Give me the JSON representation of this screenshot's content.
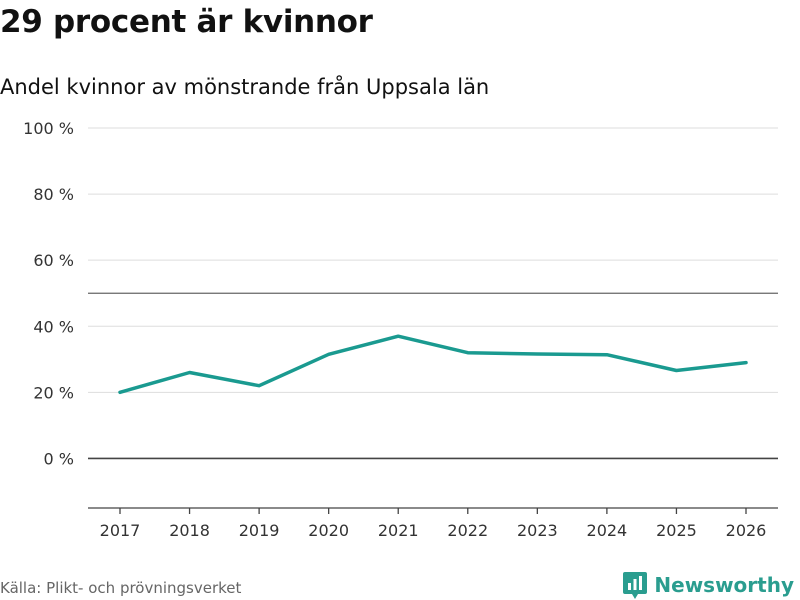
{
  "header": {
    "title": "29 procent är kvinnor",
    "subtitle": "Andel kvinnor av mönstrande från Uppsala län"
  },
  "footer": {
    "source": "Källa: Plikt- och prövningsverket",
    "brand": "Newsworthy"
  },
  "colors": {
    "line": "#1a9a90",
    "grid": "#dddddd",
    "zero_line": "#444444",
    "reference_line": "#666666",
    "brand": "#2a9d8f"
  },
  "chart_data": {
    "type": "line",
    "title": "29 procent är kvinnor",
    "subtitle": "Andel kvinnor av mönstrande från Uppsala län",
    "x": [
      "2017",
      "2018",
      "2019",
      "2020",
      "2021",
      "2022",
      "2023",
      "2024",
      "2025",
      "2026"
    ],
    "series": [
      {
        "name": "Andel kvinnor",
        "values": [
          20,
          26,
          22,
          31.5,
          37,
          32,
          31.6,
          31.4,
          26.6,
          29
        ]
      }
    ],
    "ylim": [
      -15,
      100
    ],
    "yticks": [
      0,
      20,
      40,
      60,
      80,
      100
    ],
    "ytick_labels": [
      "0 %",
      "20 %",
      "40 %",
      "60 %",
      "80 %",
      "100 %"
    ],
    "reference_line": 50,
    "grid": true,
    "xlabel": "",
    "ylabel": ""
  }
}
